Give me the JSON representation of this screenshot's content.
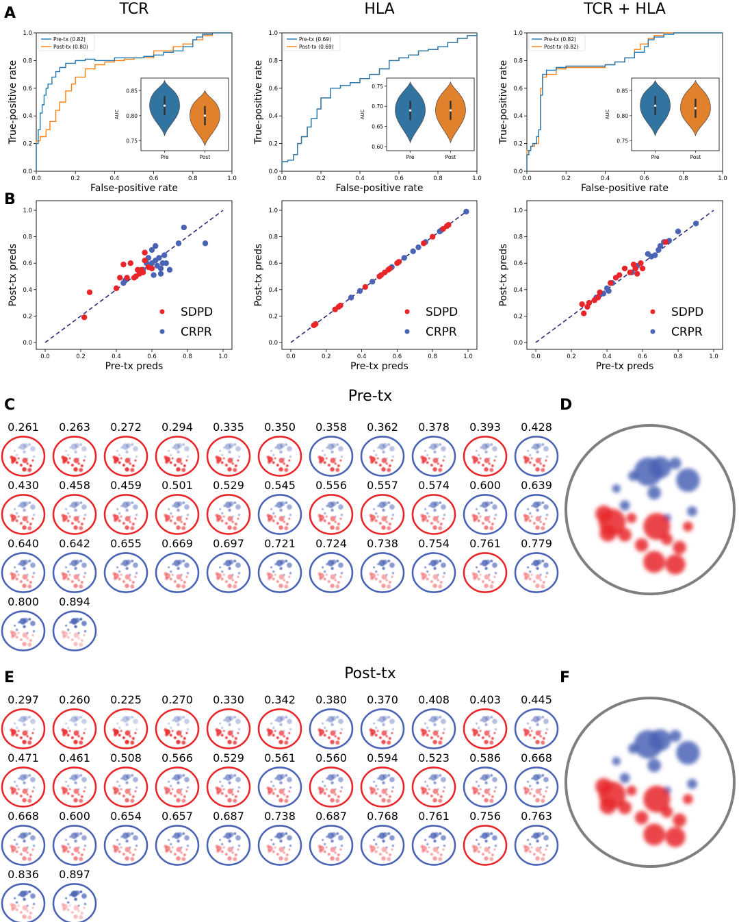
{
  "panel_letters": {
    "A": "A",
    "B": "B",
    "C": "C",
    "D": "D",
    "E": "E",
    "F": "F"
  },
  "colors": {
    "pre_line": "#1f77b4",
    "post_line": "#ff7f0e",
    "violin_pre": "#3274a1",
    "violin_post": "#e1812c",
    "sdpd": "#e8262a",
    "crpr": "#4a63b5",
    "diag": "#2b2b7a",
    "ring_gray": "#7f7f7f"
  },
  "chart_data": [
    {
      "type": "line",
      "panel": "A",
      "title": "TCR",
      "xlabel": "False-positive rate",
      "ylabel": "True-positive rate",
      "xlim": [
        0,
        1
      ],
      "ylim": [
        0,
        1
      ],
      "xticks": [
        "0.0",
        "0.2",
        "0.4",
        "0.6",
        "0.8",
        "1.0"
      ],
      "yticks": [
        "0.0",
        "0.2",
        "0.4",
        "0.6",
        "0.8",
        "1.0"
      ],
      "legend": [
        "Pre-tx (0.82)",
        "Post-tx (0.80)"
      ],
      "series": [
        {
          "name": "Pre-tx (0.82)",
          "x": [
            0,
            0,
            0.01,
            0.02,
            0.03,
            0.04,
            0.05,
            0.06,
            0.08,
            0.1,
            0.12,
            0.15,
            0.2,
            0.25,
            0.3,
            0.4,
            0.5,
            0.55,
            0.6,
            0.65,
            0.7,
            0.75,
            0.8,
            0.82,
            0.85,
            0.9,
            0.95,
            1.0
          ],
          "y": [
            0,
            0.2,
            0.3,
            0.42,
            0.48,
            0.55,
            0.6,
            0.63,
            0.68,
            0.72,
            0.75,
            0.78,
            0.8,
            0.81,
            0.8,
            0.82,
            0.82,
            0.83,
            0.84,
            0.86,
            0.87,
            0.9,
            0.95,
            0.97,
            0.99,
            1.0,
            1.0,
            1.0
          ]
        },
        {
          "name": "Post-tx (0.80)",
          "x": [
            0,
            0,
            0.02,
            0.05,
            0.07,
            0.1,
            0.12,
            0.15,
            0.18,
            0.2,
            0.25,
            0.3,
            0.35,
            0.4,
            0.45,
            0.5,
            0.6,
            0.7,
            0.75,
            0.8,
            0.85,
            0.9,
            0.95,
            1.0
          ],
          "y": [
            0,
            0.22,
            0.25,
            0.3,
            0.36,
            0.44,
            0.5,
            0.58,
            0.63,
            0.68,
            0.74,
            0.77,
            0.79,
            0.8,
            0.81,
            0.82,
            0.87,
            0.9,
            0.92,
            0.95,
            0.98,
            1.0,
            1.0,
            1.0
          ]
        }
      ],
      "inset": {
        "type": "violin",
        "ylabel": "AUC",
        "categories": [
          "Pre",
          "Post"
        ],
        "yticks": [
          "0.75",
          "0.80",
          "0.85"
        ],
        "ylim": [
          0.73,
          0.875
        ],
        "medians": [
          0.82,
          0.8
        ],
        "ranges": [
          [
            0.76,
            0.87
          ],
          [
            0.74,
            0.85
          ]
        ]
      }
    },
    {
      "type": "line",
      "panel": "A",
      "title": "HLA",
      "xlabel": "False-positive rate",
      "ylabel": "True-positive rate",
      "xlim": [
        0,
        1
      ],
      "ylim": [
        0,
        1
      ],
      "xticks": [
        "0.0",
        "0.2",
        "0.4",
        "0.6",
        "0.8",
        "1.0"
      ],
      "yticks": [
        "0.0",
        "0.2",
        "0.4",
        "0.6",
        "0.8",
        "1.0"
      ],
      "legend": [
        "Pre-tx (0.69)",
        "Post-tx (0.69)"
      ],
      "series": [
        {
          "name": "Pre-tx (0.69)",
          "x": [
            0,
            0,
            0.03,
            0.06,
            0.08,
            0.1,
            0.13,
            0.15,
            0.18,
            0.2,
            0.25,
            0.3,
            0.35,
            0.4,
            0.45,
            0.5,
            0.55,
            0.6,
            0.65,
            0.7,
            0.75,
            0.8,
            0.85,
            0.9,
            0.95,
            1.0
          ],
          "y": [
            0,
            0.07,
            0.08,
            0.12,
            0.2,
            0.25,
            0.32,
            0.38,
            0.45,
            0.53,
            0.6,
            0.62,
            0.64,
            0.67,
            0.7,
            0.74,
            0.8,
            0.82,
            0.84,
            0.87,
            0.88,
            0.9,
            0.93,
            0.96,
            0.98,
            1.0
          ]
        },
        {
          "name": "Post-tx (0.69)",
          "x": [
            0,
            0,
            0.03,
            0.06,
            0.08,
            0.1,
            0.13,
            0.15,
            0.18,
            0.2,
            0.25,
            0.3,
            0.35,
            0.4,
            0.45,
            0.5,
            0.55,
            0.6,
            0.65,
            0.7,
            0.75,
            0.8,
            0.85,
            0.9,
            0.95,
            1.0
          ],
          "y": [
            0,
            0.07,
            0.08,
            0.12,
            0.2,
            0.25,
            0.32,
            0.38,
            0.45,
            0.53,
            0.6,
            0.62,
            0.64,
            0.67,
            0.7,
            0.74,
            0.8,
            0.82,
            0.84,
            0.87,
            0.88,
            0.9,
            0.93,
            0.96,
            0.98,
            1.0
          ]
        }
      ],
      "inset": {
        "type": "violin",
        "ylabel": "AUC",
        "categories": [
          "Pre",
          "Post"
        ],
        "yticks": [
          "0.60",
          "0.65",
          "0.70",
          "0.75"
        ],
        "ylim": [
          0.59,
          0.77
        ],
        "medians": [
          0.69,
          0.69
        ],
        "ranges": [
          [
            0.61,
            0.76
          ],
          [
            0.61,
            0.76
          ]
        ]
      }
    },
    {
      "type": "line",
      "panel": "A",
      "title": "TCR + HLA",
      "xlabel": "False-positive rate",
      "ylabel": "True-positive rate",
      "xlim": [
        0,
        1
      ],
      "ylim": [
        0,
        1
      ],
      "xticks": [
        "0.0",
        "0.2",
        "0.4",
        "0.6",
        "0.8",
        "1.0"
      ],
      "yticks": [
        "0.0",
        "0.2",
        "0.4",
        "0.6",
        "0.8",
        "1.0"
      ],
      "legend": [
        "Pre-tx (0.82)",
        "Post-tx (0.82)"
      ],
      "series": [
        {
          "name": "Pre-tx (0.82)",
          "x": [
            0,
            0,
            0.01,
            0.02,
            0.03,
            0.05,
            0.06,
            0.07,
            0.08,
            0.1,
            0.15,
            0.2,
            0.3,
            0.4,
            0.45,
            0.5,
            0.55,
            0.6,
            0.62,
            0.65,
            0.7,
            0.75,
            0.8,
            0.85,
            0.9,
            0.95,
            1.0
          ],
          "y": [
            0,
            0.12,
            0.15,
            0.18,
            0.2,
            0.25,
            0.3,
            0.55,
            0.7,
            0.73,
            0.75,
            0.76,
            0.76,
            0.77,
            0.79,
            0.82,
            0.86,
            0.9,
            0.95,
            0.97,
            0.99,
            1.0,
            1.0,
            1.0,
            1.0,
            1.0,
            1.0
          ]
        },
        {
          "name": "Post-tx (0.82)",
          "x": [
            0,
            0,
            0.02,
            0.04,
            0.06,
            0.07,
            0.08,
            0.1,
            0.15,
            0.2,
            0.3,
            0.4,
            0.45,
            0.5,
            0.55,
            0.58,
            0.62,
            0.65,
            0.7,
            0.8,
            0.9,
            1.0
          ],
          "y": [
            0,
            0.15,
            0.18,
            0.2,
            0.3,
            0.6,
            0.68,
            0.7,
            0.74,
            0.75,
            0.75,
            0.77,
            0.79,
            0.82,
            0.88,
            0.92,
            0.96,
            0.98,
            1.0,
            1.0,
            1.0,
            1.0
          ]
        }
      ],
      "inset": {
        "type": "violin",
        "ylabel": "AUC",
        "categories": [
          "Pre",
          "Post"
        ],
        "yticks": [
          "0.75",
          "0.80",
          "0.85"
        ],
        "ylim": [
          0.73,
          0.875
        ],
        "medians": [
          0.82,
          0.815
        ],
        "ranges": [
          [
            0.76,
            0.87
          ],
          [
            0.76,
            0.87
          ]
        ]
      }
    },
    {
      "type": "scatter",
      "panel": "B",
      "xlabel": "Pre-tx preds",
      "ylabel": "Post-tx preds",
      "xlim": [
        0,
        1
      ],
      "ylim": [
        0,
        1
      ],
      "xticks": [
        "0.0",
        "0.2",
        "0.4",
        "0.6",
        "0.8",
        "1.0"
      ],
      "yticks": [
        "0.0",
        "0.2",
        "0.4",
        "0.6",
        "0.8",
        "1.0"
      ],
      "legend": [
        "SDPD",
        "CRPR"
      ],
      "sdpd": [
        [
          0.22,
          0.19
        ],
        [
          0.25,
          0.38
        ],
        [
          0.4,
          0.41
        ],
        [
          0.44,
          0.59
        ],
        [
          0.5,
          0.49
        ],
        [
          0.48,
          0.6
        ],
        [
          0.53,
          0.52
        ],
        [
          0.54,
          0.55
        ],
        [
          0.56,
          0.68
        ],
        [
          0.6,
          0.56
        ],
        [
          0.55,
          0.53
        ],
        [
          0.58,
          0.57
        ],
        [
          0.51,
          0.5
        ],
        [
          0.42,
          0.49
        ],
        [
          0.46,
          0.49
        ],
        [
          0.56,
          0.62
        ],
        [
          0.52,
          0.55
        ]
      ],
      "crpr": [
        [
          0.44,
          0.45
        ],
        [
          0.45,
          0.47
        ],
        [
          0.55,
          0.55
        ],
        [
          0.58,
          0.64
        ],
        [
          0.6,
          0.6
        ],
        [
          0.62,
          0.73
        ],
        [
          0.63,
          0.58
        ],
        [
          0.64,
          0.64
        ],
        [
          0.65,
          0.56
        ],
        [
          0.66,
          0.6
        ],
        [
          0.68,
          0.6
        ],
        [
          0.7,
          0.55
        ],
        [
          0.6,
          0.7
        ],
        [
          0.57,
          0.6
        ],
        [
          0.62,
          0.62
        ],
        [
          0.65,
          0.52
        ],
        [
          0.67,
          0.66
        ],
        [
          0.75,
          0.75
        ],
        [
          0.78,
          0.87
        ],
        [
          0.9,
          0.75
        ],
        [
          0.61,
          0.51
        ]
      ]
    },
    {
      "type": "scatter",
      "panel": "B",
      "xlabel": "Pre-tx preds",
      "ylabel": "Post-tx preds",
      "xlim": [
        0,
        1
      ],
      "ylim": [
        0,
        1
      ],
      "xticks": [
        "0.0",
        "0.2",
        "0.4",
        "0.6",
        "0.8",
        "1.0"
      ],
      "yticks": [
        "0.0",
        "0.2",
        "0.4",
        "0.6",
        "0.8",
        "1.0"
      ],
      "legend": [
        "SDPD",
        "CRPR"
      ],
      "sdpd": [
        [
          0.13,
          0.13
        ],
        [
          0.14,
          0.14
        ],
        [
          0.25,
          0.25
        ],
        [
          0.27,
          0.27
        ],
        [
          0.28,
          0.28
        ],
        [
          0.42,
          0.42
        ],
        [
          0.5,
          0.5
        ],
        [
          0.51,
          0.51
        ],
        [
          0.53,
          0.53
        ],
        [
          0.55,
          0.55
        ],
        [
          0.56,
          0.56
        ],
        [
          0.6,
          0.6
        ],
        [
          0.61,
          0.61
        ],
        [
          0.75,
          0.75
        ],
        [
          0.8,
          0.8
        ],
        [
          0.86,
          0.86
        ],
        [
          0.88,
          0.88
        ],
        [
          0.89,
          0.89
        ]
      ],
      "crpr": [
        [
          0.34,
          0.34
        ],
        [
          0.39,
          0.39
        ],
        [
          0.46,
          0.46
        ],
        [
          0.57,
          0.57
        ],
        [
          0.64,
          0.64
        ],
        [
          0.69,
          0.69
        ],
        [
          0.72,
          0.72
        ],
        [
          0.76,
          0.76
        ],
        [
          0.84,
          0.84
        ],
        [
          0.85,
          0.85
        ],
        [
          0.99,
          0.99
        ]
      ]
    },
    {
      "type": "scatter",
      "panel": "B",
      "xlabel": "Pre-tx preds",
      "ylabel": "Post-tx preds",
      "xlim": [
        0,
        1
      ],
      "ylim": [
        0,
        1
      ],
      "xticks": [
        "0.0",
        "0.2",
        "0.4",
        "0.6",
        "0.8",
        "1.0"
      ],
      "yticks": [
        "0.0",
        "0.2",
        "0.4",
        "0.6",
        "0.8",
        "1.0"
      ],
      "legend": [
        "SDPD",
        "CRPR"
      ],
      "sdpd": [
        [
          0.26,
          0.29
        ],
        [
          0.27,
          0.22
        ],
        [
          0.29,
          0.27
        ],
        [
          0.33,
          0.32
        ],
        [
          0.35,
          0.34
        ],
        [
          0.42,
          0.45
        ],
        [
          0.45,
          0.49
        ],
        [
          0.47,
          0.51
        ],
        [
          0.5,
          0.56
        ],
        [
          0.53,
          0.53
        ],
        [
          0.55,
          0.59
        ],
        [
          0.57,
          0.52
        ],
        [
          0.6,
          0.56
        ],
        [
          0.73,
          0.76
        ],
        [
          0.3,
          0.3
        ],
        [
          0.36,
          0.38
        ],
        [
          0.56,
          0.56
        ],
        [
          0.59,
          0.6
        ]
      ],
      "crpr": [
        [
          0.34,
          0.34
        ],
        [
          0.36,
          0.36
        ],
        [
          0.38,
          0.37
        ],
        [
          0.4,
          0.41
        ],
        [
          0.41,
          0.39
        ],
        [
          0.43,
          0.45
        ],
        [
          0.54,
          0.53
        ],
        [
          0.56,
          0.56
        ],
        [
          0.57,
          0.58
        ],
        [
          0.63,
          0.67
        ],
        [
          0.65,
          0.65
        ],
        [
          0.67,
          0.66
        ],
        [
          0.69,
          0.7
        ],
        [
          0.7,
          0.73
        ],
        [
          0.72,
          0.76
        ],
        [
          0.75,
          0.77
        ],
        [
          0.8,
          0.84
        ],
        [
          0.9,
          0.9
        ]
      ]
    }
  ],
  "panel_c": {
    "title": "Pre-tx",
    "values": [
      "0.261",
      "0.263",
      "0.272",
      "0.294",
      "0.335",
      "0.350",
      "0.358",
      "0.362",
      "0.378",
      "0.393",
      "0.428",
      "0.430",
      "0.458",
      "0.459",
      "0.501",
      "0.529",
      "0.545",
      "0.556",
      "0.557",
      "0.574",
      "0.600",
      "0.639",
      "0.640",
      "0.642",
      "0.655",
      "0.669",
      "0.697",
      "0.721",
      "0.724",
      "0.738",
      "0.754",
      "0.761",
      "0.779",
      "0.800",
      "0.894"
    ],
    "ring": [
      "r",
      "r",
      "r",
      "r",
      "r",
      "r",
      "b",
      "b",
      "b",
      "r",
      "b",
      "r",
      "r",
      "r",
      "r",
      "r",
      "b",
      "r",
      "r",
      "r",
      "b",
      "b",
      "b",
      "b",
      "b",
      "b",
      "b",
      "b",
      "b",
      "b",
      "b",
      "r",
      "b",
      "b",
      "b"
    ]
  },
  "panel_e": {
    "title": "Post-tx",
    "values": [
      "0.297",
      "0.260",
      "0.225",
      "0.270",
      "0.330",
      "0.342",
      "0.380",
      "0.370",
      "0.408",
      "0.403",
      "0.445",
      "0.471",
      "0.461",
      "0.508",
      "0.566",
      "0.529",
      "0.561",
      "0.560",
      "0.594",
      "0.523",
      "0.586",
      "0.668",
      "0.668",
      "0.600",
      "0.654",
      "0.657",
      "0.687",
      "0.738",
      "0.687",
      "0.768",
      "0.761",
      "0.756",
      "0.763",
      "0.836",
      "0.897"
    ],
    "ring": [
      "r",
      "r",
      "r",
      "r",
      "r",
      "r",
      "b",
      "b",
      "b",
      "r",
      "b",
      "r",
      "r",
      "r",
      "r",
      "r",
      "b",
      "r",
      "r",
      "r",
      "b",
      "b",
      "b",
      "b",
      "b",
      "b",
      "b",
      "b",
      "b",
      "b",
      "b",
      "r",
      "b",
      "b",
      "b"
    ]
  }
}
